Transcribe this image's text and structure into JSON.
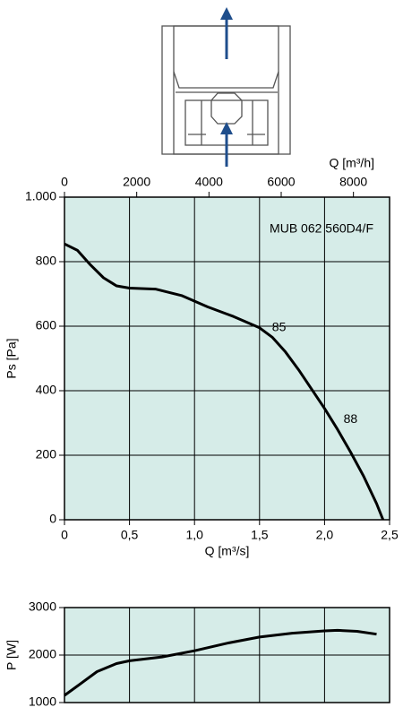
{
  "chart_data": [
    {
      "type": "line",
      "label": "MUB 062 560D4/F",
      "xlabel": "Q [m³/s]",
      "ylabel": "Ps [Pa]",
      "x2label": "Q [m³/h]",
      "xlim": [
        0,
        2.5
      ],
      "xticks": [
        0,
        {
          "value": 0.5,
          "label": "0,5"
        },
        {
          "value": 1,
          "label": "1,0"
        },
        {
          "value": 1.5,
          "label": "1,5"
        },
        {
          "value": 2,
          "label": "2,0"
        },
        {
          "value": 2.5,
          "label": "2,5"
        }
      ],
      "x2lim": [
        0,
        9000
      ],
      "x2ticks": [
        0,
        2000,
        4000,
        6000,
        8000
      ],
      "ylim": [
        0,
        1000
      ],
      "yticks": [
        0,
        200,
        400,
        600,
        800,
        {
          "value": 1000,
          "label": "1.000"
        }
      ],
      "grid": true,
      "background": "#d6ece8",
      "x": [
        0,
        0.1,
        0.2,
        0.3,
        0.4,
        0.5,
        0.7,
        0.9,
        1.1,
        1.3,
        1.5,
        1.6,
        1.7,
        1.8,
        1.9,
        2.0,
        2.1,
        2.2,
        2.3,
        2.4,
        2.45
      ],
      "series": [
        {
          "color": "#000000",
          "values": [
            855,
            835,
            790,
            750,
            725,
            718,
            715,
            695,
            660,
            630,
            595,
            565,
            520,
            465,
            405,
            345,
            280,
            210,
            135,
            50,
            0
          ]
        }
      ],
      "annotations": [
        {
          "text": "85",
          "x": 1.65,
          "y": 595
        },
        {
          "text": "88",
          "x": 2.2,
          "y": 310
        }
      ]
    },
    {
      "type": "line",
      "ylabel": "P [W]",
      "xlim": [
        0,
        2.5
      ],
      "xgrid": [
        0,
        0.5,
        1,
        1.5,
        2,
        2.5
      ],
      "ylim": [
        1000,
        3000
      ],
      "yticks": [
        1000,
        2000,
        3000
      ],
      "grid": true,
      "background": "#d6ece8",
      "x": [
        0,
        0.1,
        0.25,
        0.4,
        0.5,
        0.75,
        1,
        1.25,
        1.5,
        1.75,
        2,
        2.1,
        2.25,
        2.4
      ],
      "series": [
        {
          "color": "#000000",
          "values": [
            1150,
            1350,
            1650,
            1820,
            1880,
            1960,
            2090,
            2250,
            2380,
            2460,
            2510,
            2520,
            2500,
            2440
          ]
        }
      ]
    }
  ]
}
